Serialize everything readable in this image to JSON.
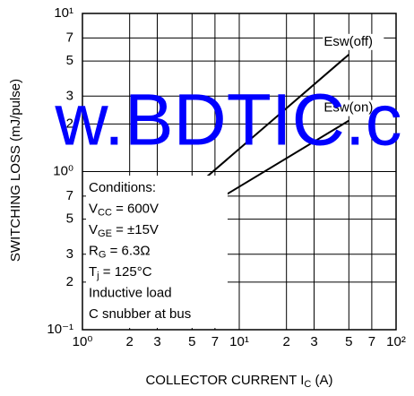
{
  "chart_data": {
    "type": "line",
    "xscale": "log",
    "yscale": "log",
    "grid": true,
    "xlabel": [
      "COLLECTOR CURRENT  I",
      "C",
      " (A)"
    ],
    "ylabel": "SWITCHING LOSS (mJ/pulse)",
    "watermark": "w.BDTIC.c",
    "xlim": [
      1,
      100
    ],
    "ylim": [
      0.1,
      10
    ],
    "xticks": [
      {
        "value": 1,
        "label": "10⁰"
      },
      2,
      3,
      5,
      7,
      {
        "value": 10,
        "label": "10¹"
      },
      {
        "value": 20,
        "label": "2"
      },
      {
        "value": 30,
        "label": "3"
      },
      {
        "value": 50,
        "label": "5"
      },
      {
        "value": 70,
        "label": "7"
      },
      {
        "value": 100,
        "label": "10²"
      }
    ],
    "yticks": [
      {
        "value": 0.1,
        "label": "10⁻¹"
      },
      {
        "value": 0.2,
        "label": "2"
      },
      {
        "value": 0.3,
        "label": "3"
      },
      {
        "value": 0.5,
        "label": "5"
      },
      {
        "value": 0.7,
        "label": "7"
      },
      {
        "value": 1,
        "label": "10⁰"
      },
      2,
      3,
      5,
      7,
      {
        "value": 10,
        "label": "10¹"
      }
    ],
    "series": [
      {
        "name": "Esw(off)",
        "color": "#000000",
        "x": [
          5,
          50
        ],
        "values": [
          0.77,
          5.5
        ]
      },
      {
        "name": "Esw(on)",
        "color": "#000000",
        "x": [
          5,
          50
        ],
        "values": [
          0.53,
          2.1
        ]
      }
    ],
    "conditions": [
      [
        "Conditions:"
      ],
      [
        "V",
        "CC",
        " = 600V"
      ],
      [
        "V",
        "GE",
        " = ±15V"
      ],
      [
        "R",
        "G",
        " = 6.3Ω"
      ],
      [
        "T",
        "j",
        " = 125°C"
      ],
      [
        "Inductive load"
      ],
      [
        "C snubber at bus"
      ]
    ]
  }
}
